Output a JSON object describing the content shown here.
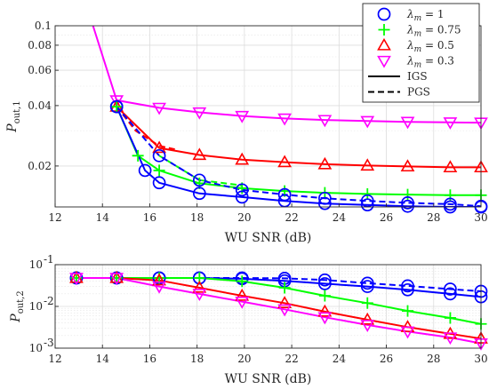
{
  "chart_data": [
    {
      "type": "line",
      "xlabel": "WU SNR (dB)",
      "ylabel_main": "P",
      "ylabel_sub": "out,1",
      "xlim": [
        12,
        30
      ],
      "ylim": [
        0.0125,
        0.1
      ],
      "yscale": "log",
      "grid": true,
      "legend_position": "top-right",
      "x_ticks": [
        12,
        14,
        16,
        18,
        20,
        22,
        24,
        26,
        28,
        30
      ],
      "y_ticks": [
        0.02,
        0.04,
        0.06,
        0.08,
        0.1
      ],
      "y_tick_labels": [
        "0.02",
        "0.04",
        "0.06",
        "0.08",
        "0.1"
      ],
      "legend": [
        {
          "key": "lm1",
          "prefix": "λ",
          "sub": "m",
          "suffix": " = 1",
          "marker": "circle",
          "color": "#0000ff"
        },
        {
          "key": "lm075",
          "prefix": "λ",
          "sub": "m",
          "suffix": " = 0.75",
          "marker": "plus",
          "color": "#00ff00"
        },
        {
          "key": "lm05",
          "prefix": "λ",
          "sub": "m",
          "suffix": " = 0.5",
          "marker": "triangle-up",
          "color": "#ff0000"
        },
        {
          "key": "lm03",
          "prefix": "λ",
          "sub": "m",
          "suffix": " = 0.3",
          "marker": "triangle-down",
          "color": "#ff00ff"
        },
        {
          "key": "igs",
          "label": "IGS",
          "style": "solid",
          "color": "#000000"
        },
        {
          "key": "pgs",
          "label": "PGS",
          "style": "dashed",
          "color": "#000000"
        }
      ],
      "series": [
        {
          "color": "#ff00ff",
          "marker": "triangle-down",
          "style": "solid",
          "x": [
            13.6,
            14.6,
            16.4,
            18.1,
            19.9,
            21.7,
            23.4,
            25.2,
            26.9,
            28.7,
            30
          ],
          "y": [
            0.1,
            0.0425,
            0.039,
            0.037,
            0.0355,
            0.0345,
            0.0339,
            0.0335,
            0.0332,
            0.033,
            0.0329
          ]
        },
        {
          "color": "#ff0000",
          "marker": "triangle-up",
          "style": "solid",
          "x": [
            14.6,
            16.4,
            18.1,
            19.9,
            21.7,
            23.4,
            25.2,
            26.9,
            28.7,
            30
          ],
          "y": [
            0.0395,
            0.0246,
            0.0227,
            0.0215,
            0.0209,
            0.0204,
            0.0201,
            0.0199,
            0.0197,
            0.0197
          ]
        },
        {
          "color": "#ff0000",
          "marker": "none",
          "style": "dashed",
          "x": [
            14.6,
            15.4,
            16.4,
            17.2
          ],
          "y": [
            0.0395,
            0.03,
            0.0252,
            0.024
          ]
        },
        {
          "color": "#00ff00",
          "marker": "plus",
          "style": "solid",
          "x": [
            14.6,
            15.5,
            16.4,
            18.1,
            19.9,
            21.7,
            23.4,
            25.2,
            26.9,
            28.7,
            30
          ],
          "y": [
            0.0395,
            0.0225,
            0.019,
            0.0164,
            0.0155,
            0.015,
            0.0147,
            0.0145,
            0.0144,
            0.0143,
            0.0143
          ]
        },
        {
          "color": "#00ff00",
          "marker": "none",
          "style": "dashed",
          "x": [
            16.4,
            18.1,
            19.9
          ],
          "y": [
            0.0225,
            0.017,
            0.016
          ]
        },
        {
          "color": "#0000ff",
          "marker": "circle",
          "style": "solid",
          "x": [
            14.6,
            15.8,
            16.4,
            18.1,
            19.9,
            21.7,
            23.4,
            25.2,
            26.9,
            28.7,
            30
          ],
          "y": [
            0.0395,
            0.019,
            0.0165,
            0.0146,
            0.014,
            0.0134,
            0.013,
            0.0128,
            0.0126,
            0.0125,
            0.0125
          ]
        },
        {
          "color": "#0000ff",
          "marker": "circle",
          "style": "dashed",
          "x": [
            14.6,
            16.4,
            18.1,
            19.9,
            21.7,
            23.4,
            25.2,
            26.9,
            28.7,
            30
          ],
          "y": [
            0.0395,
            0.0225,
            0.017,
            0.0152,
            0.0144,
            0.0138,
            0.0134,
            0.0131,
            0.0129,
            0.0126
          ]
        }
      ]
    },
    {
      "type": "line",
      "xlabel": "WU SNR (dB)",
      "ylabel_main": "P",
      "ylabel_sub": "out,2",
      "xlim": [
        12,
        30
      ],
      "ylim": [
        0.001,
        0.1
      ],
      "yscale": "log",
      "grid": true,
      "x_ticks": [
        12,
        14,
        16,
        18,
        20,
        22,
        24,
        26,
        28,
        30
      ],
      "y_ticks": [
        0.001,
        0.01,
        0.1
      ],
      "y_tick_labels": [
        {
          "base": "10",
          "exp": "-3"
        },
        {
          "base": "10",
          "exp": "-2"
        },
        {
          "base": "10",
          "exp": "-1"
        }
      ],
      "series": [
        {
          "color": "#0000ff",
          "marker": "circle",
          "style": "solid",
          "x": [
            12.9,
            14.6,
            16.4,
            18.1,
            19.9,
            21.7,
            23.4,
            25.2,
            26.9,
            28.7,
            30
          ],
          "y": [
            0.048,
            0.048,
            0.048,
            0.048,
            0.046,
            0.041,
            0.035,
            0.03,
            0.025,
            0.02,
            0.017
          ]
        },
        {
          "color": "#0000ff",
          "marker": "circle",
          "style": "dashed",
          "x": [
            12.9,
            14.6,
            16.4,
            18.1,
            19.9,
            21.7,
            23.4,
            25.2,
            26.9,
            28.7,
            30
          ],
          "y": [
            0.048,
            0.048,
            0.048,
            0.048,
            0.048,
            0.047,
            0.043,
            0.036,
            0.031,
            0.026,
            0.023
          ]
        },
        {
          "color": "#00ff00",
          "marker": "plus",
          "style": "solid",
          "x": [
            12.9,
            14.6,
            16.4,
            18.1,
            19.9,
            21.7,
            23.4,
            25.2,
            26.9,
            28.7,
            30
          ],
          "y": [
            0.048,
            0.048,
            0.048,
            0.048,
            0.04,
            0.028,
            0.018,
            0.012,
            0.0078,
            0.0053,
            0.0038
          ]
        },
        {
          "color": "#ff0000",
          "marker": "triangle-up",
          "style": "solid",
          "x": [
            12.9,
            14.6,
            16.4,
            18.1,
            19.9,
            21.7,
            23.4,
            25.2,
            26.9,
            28.7,
            30
          ],
          "y": [
            0.048,
            0.048,
            0.042,
            0.028,
            0.018,
            0.012,
            0.0075,
            0.0048,
            0.0032,
            0.0022,
            0.0017
          ]
        },
        {
          "color": "#ff00ff",
          "marker": "triangle-down",
          "style": "solid",
          "x": [
            12.9,
            14.6,
            16.4,
            18.1,
            19.9,
            21.7,
            23.4,
            25.2,
            26.9,
            28.7,
            30
          ],
          "y": [
            0.048,
            0.048,
            0.03,
            0.02,
            0.013,
            0.0085,
            0.0055,
            0.0036,
            0.0025,
            0.0018,
            0.0013
          ]
        }
      ]
    }
  ]
}
